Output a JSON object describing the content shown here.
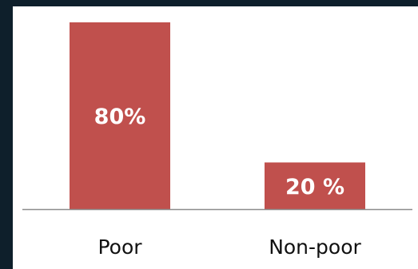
{
  "colors": {
    "frame_background": "#0e1f2b",
    "panel_background": "#ffffff",
    "bar": "#c0504d",
    "axis": "#8c8c8c"
  },
  "chart_data": {
    "type": "bar",
    "categories": [
      "Poor",
      "Non-poor"
    ],
    "values": [
      80,
      20
    ],
    "data_labels": [
      "80%",
      "20 %"
    ],
    "ylim": [
      0,
      80
    ],
    "grid": false,
    "legend": "none"
  }
}
